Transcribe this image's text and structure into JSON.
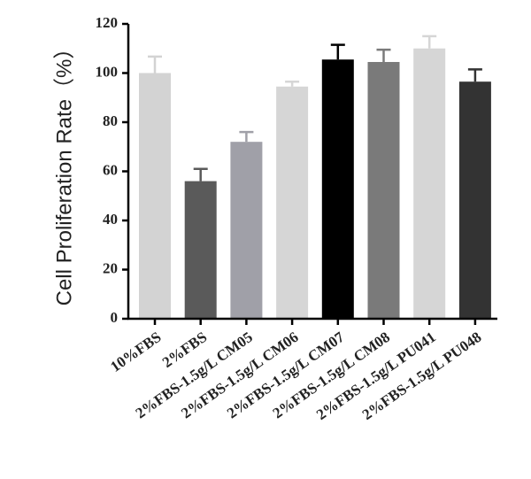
{
  "chart_data": {
    "type": "bar",
    "y_label": "Cell Proliferation Rate（%）",
    "categories": [
      "10%FBS",
      "2%FBS",
      "2%FBS-1.5g/L CM05",
      "2%FBS-1.5g/L CM06",
      "2%FBS-1.5g/L CM07",
      "2%FBS-1.5g/L CM08",
      "2%FBS-1.5g/L PU041",
      "2%FBS-1.5g/L PU048"
    ],
    "values": [
      100,
      56,
      72,
      94.5,
      105.5,
      104.5,
      110,
      96.5
    ],
    "errors": [
      6.7,
      5,
      4,
      2,
      6,
      5,
      5,
      5
    ],
    "colors": [
      "#d3d3d3",
      "#5a5a5a",
      "#a0a0a8",
      "#d6d6d6",
      "#000000",
      "#7a7a7a",
      "#d6d6d6",
      "#333333"
    ],
    "ylim": [
      0,
      120
    ],
    "yticks": [
      0,
      20,
      40,
      60,
      80,
      100,
      120
    ]
  }
}
